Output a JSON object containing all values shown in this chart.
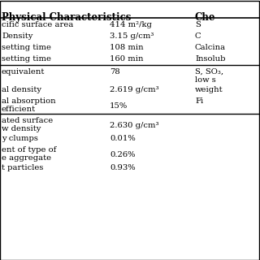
{
  "title_left": "Physical Characteristics",
  "title_right": "Che",
  "background_color": "#ffffff",
  "header_line_color": "#000000",
  "section_divider_color": "#000000",
  "rows_section1": [
    {
      "left": "cific surface area",
      "mid": "414 m²/kg",
      "right": "S"
    },
    {
      "left": "Density",
      "mid": "3.15 g/cm³",
      "right": "C"
    },
    {
      "left": "setting time",
      "mid": "108 min",
      "right": "Calcina"
    },
    {
      "left": "setting time",
      "mid": "160 min",
      "right": "Insolub"
    }
  ],
  "rows_section2": [
    {
      "left": "equivalent",
      "mid": "78",
      "right": "S, SO₃,\nlow s"
    },
    {
      "left": "al density",
      "mid": "2.619 g/cm³",
      "right": "weight"
    },
    {
      "left": "al absorption\nefficient",
      "mid": "15%",
      "right": "Fi"
    }
  ],
  "rows_section3": [
    {
      "left": "ated surface\nw density",
      "mid": "2.630 g/cm³",
      "right": ""
    },
    {
      "left": "y clumps",
      "mid": "0.01%",
      "right": ""
    },
    {
      "left": "ent of type of\ne aggregate",
      "mid": "0.26%",
      "right": ""
    },
    {
      "left": "t particles",
      "mid": "0.93%",
      "right": ""
    }
  ]
}
